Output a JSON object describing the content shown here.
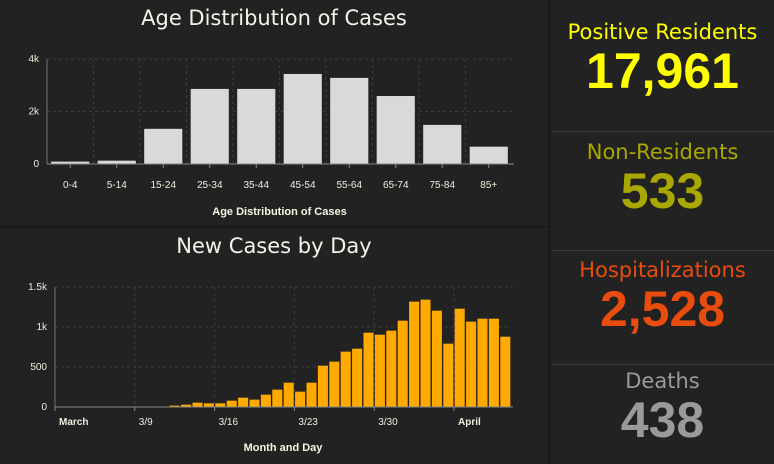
{
  "age_chart": {
    "title": "Age Distribution of Cases",
    "chart_data": {
      "type": "bar",
      "categories": [
        "0-4",
        "5-14",
        "15-24",
        "25-34",
        "35-44",
        "45-54",
        "55-64",
        "65-74",
        "75-84",
        "85+"
      ],
      "values": [
        90,
        127,
        1340,
        2860,
        2860,
        3430,
        3280,
        2590,
        1490,
        660
      ],
      "xlabel": "Age Distribution of Cases",
      "ylabel": "",
      "ylim": [
        0,
        4000
      ],
      "yticks": [
        {
          "v": 0,
          "label": "0"
        },
        {
          "v": 2000,
          "label": "2k"
        },
        {
          "v": 4000,
          "label": "4k"
        }
      ],
      "grid": true,
      "color": "#d9d9d9"
    }
  },
  "cases_chart": {
    "title": "New Cases by Day",
    "chart_data": {
      "type": "bar",
      "x_start": "3/2",
      "x_end": "4/10",
      "values": [
        1,
        1,
        0,
        1,
        2,
        2,
        3,
        2,
        3,
        4,
        17,
        29,
        54,
        46,
        46,
        79,
        117,
        92,
        154,
        217,
        304,
        192,
        304,
        517,
        567,
        692,
        729,
        929,
        904,
        954,
        1079,
        1317,
        1342,
        1204,
        792,
        1229,
        1067,
        1104,
        1104,
        879
      ],
      "xticks": [
        {
          "i": 0,
          "label": "March",
          "bold": true
        },
        {
          "i": 7,
          "label": "3/9"
        },
        {
          "i": 14,
          "label": "3/16"
        },
        {
          "i": 21,
          "label": "3/23"
        },
        {
          "i": 28,
          "label": "3/30"
        },
        {
          "i": 35,
          "label": "April",
          "bold": true
        }
      ],
      "xlabel": "Month and Day",
      "ylabel": "",
      "ylim": [
        0,
        1500
      ],
      "yticks": [
        {
          "v": 0,
          "label": "0"
        },
        {
          "v": 500,
          "label": "500"
        },
        {
          "v": 1000,
          "label": "1k"
        },
        {
          "v": 1500,
          "label": "1.5k"
        }
      ],
      "grid": true,
      "color": "#ffaa00"
    }
  },
  "indicators": [
    {
      "label": "Positive Residents",
      "value": "17,961",
      "color": "#ffff00"
    },
    {
      "label": "Non-Residents",
      "value": "533",
      "color": "#a8a800"
    },
    {
      "label": "Hospitalizations",
      "value": "2,528",
      "color": "#e84c0e"
    },
    {
      "label": "Deaths",
      "value": "438",
      "color": "#9a9a9a"
    }
  ]
}
